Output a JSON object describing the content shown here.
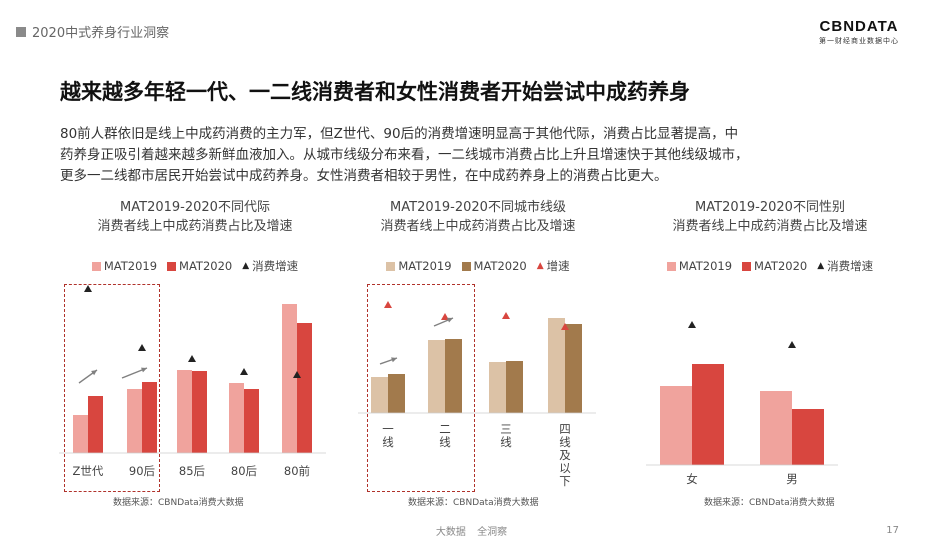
{
  "header": {
    "tag": "2020中式养身行业洞察"
  },
  "logo": {
    "name": "CBNDATA",
    "subtitle": "第一财经商业数据中心"
  },
  "page_title": "越来越多年轻一代、一二线消费者和女性消费者开始尝试中成药养身",
  "description": [
    "80前人群依旧是线上中成药消费的主力军，但Z世代、90后的消费增速明显高于其他代际，消费占比显著提高，中",
    "药养身正吸引着越来越多新鲜血液加入。从城市线级分布来看，一二线城市消费占比上升且增速快于其他线级城市，",
    "更多一二线都市居民开始尝试中成药养身。女性消费者相较于男性，在中成药养身上的消费占比更大。"
  ],
  "colors": {
    "gen2019": "#f0a39d",
    "gen2020": "#d8463f",
    "city2019": "#dcc2a6",
    "city2020": "#a27a4c",
    "triangle_dark": "#222222",
    "triangle_red": "#d8463f",
    "arrow": "#808080",
    "dash": "#b0322b"
  },
  "chart_data": [
    {
      "type": "bar",
      "title_lines": [
        "MAT2019-2020不同代际",
        "消费者线上中成药消费占比及增速"
      ],
      "legend": [
        "MAT2019",
        "MAT2020",
        "消费增速"
      ],
      "categories": [
        "Z世代",
        "90后",
        "85后",
        "80后",
        "80前"
      ],
      "series": [
        {
          "name": "MAT2019",
          "values": [
            38,
            64,
            83,
            70,
            149
          ]
        },
        {
          "name": "MAT2020",
          "values": [
            57,
            71,
            82,
            64,
            130
          ]
        }
      ],
      "growth_markers": [
        164,
        105,
        94,
        81,
        78
      ],
      "ylim": [
        0,
        175
      ]
    },
    {
      "type": "bar",
      "title_lines": [
        "MAT2019-2020不同城市线级",
        "消费者线上中成药消费占比及增速"
      ],
      "legend": [
        "MAT2019",
        "MAT2020",
        "增速"
      ],
      "categories": [
        "一线",
        "二线",
        "三线",
        "四线及以下"
      ],
      "series": [
        {
          "name": "MAT2019",
          "values": [
            36,
            73,
            51,
            95
          ]
        },
        {
          "name": "MAT2020",
          "values": [
            39,
            74,
            52,
            89
          ]
        }
      ],
      "growth_markers": [
        108,
        96,
        97,
        86
      ],
      "ylim": [
        0,
        120
      ]
    },
    {
      "type": "bar",
      "title_lines": [
        "MAT2019-2020不同性别",
        "消费者线上中成药消费占比及增速"
      ],
      "legend": [
        "MAT2019",
        "MAT2020",
        "消费增速"
      ],
      "categories": [
        "女",
        "男"
      ],
      "series": [
        {
          "name": "MAT2019",
          "values": [
            79,
            74
          ]
        },
        {
          "name": "MAT2020",
          "values": [
            101,
            56
          ]
        }
      ],
      "growth_markers": [
        140,
        120
      ],
      "ylim": [
        0,
        160
      ]
    }
  ],
  "source_label": "数据来源：CBNData消费大数据",
  "footer": {
    "left": "大数据",
    "right": "全洞察"
  },
  "page_number": "17"
}
